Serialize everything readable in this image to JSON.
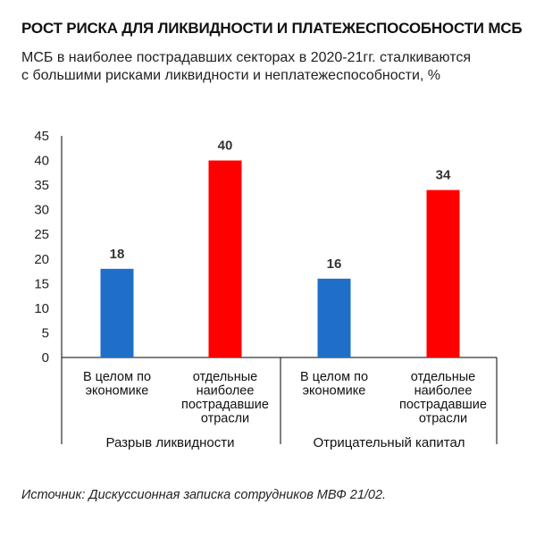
{
  "header": {
    "title": "РОСТ РИСКА ДЛЯ ЛИКВИДНОСТИ И ПЛАТЕЖЕСПОСОБНОСТИ МСБ",
    "subtitle_lines": [
      "МСБ в наиболее пострадавших секторах в 2020-21гг. сталкиваются",
      "с большими рисками ликвидности и неплатежеспособности, %"
    ]
  },
  "source": "Источник: Дискуссионная записка сотрудников МВФ 21/02.",
  "colors": {
    "blue": "#1f6fc9",
    "red": "#ff0000",
    "axis": "#000000"
  },
  "chart_data": {
    "type": "bar",
    "ylim": [
      0,
      45
    ],
    "yticks": [
      0,
      5,
      10,
      15,
      20,
      25,
      30,
      35,
      40,
      45
    ],
    "grid": false,
    "groups": [
      {
        "label": "Разрыв ликвидности",
        "bars": [
          {
            "category_lines": [
              "В целом по",
              "экономике"
            ],
            "value": 18,
            "color": "blue"
          },
          {
            "category_lines": [
              "отдельные",
              "наиболее",
              "пострадавшие",
              "отрасли"
            ],
            "value": 40,
            "color": "red"
          }
        ]
      },
      {
        "label": "Отрицательный капитал",
        "bars": [
          {
            "category_lines": [
              "В целом по",
              "экономике"
            ],
            "value": 16,
            "color": "blue"
          },
          {
            "category_lines": [
              "отдельные",
              "наиболее",
              "пострадавшие",
              "отрасли"
            ],
            "value": 34,
            "color": "red"
          }
        ]
      }
    ]
  }
}
